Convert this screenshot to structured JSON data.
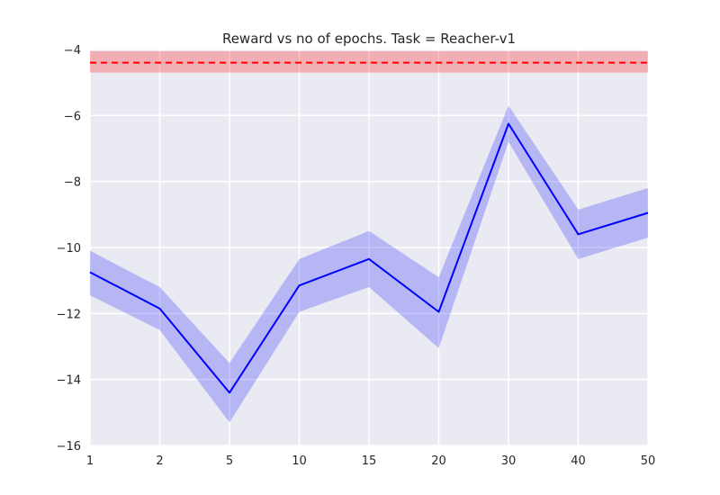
{
  "chart_data": {
    "type": "line",
    "title": "Reward vs no of epochs. Task = Reacher-v1",
    "xlabel": "",
    "ylabel": "",
    "categories": [
      "1",
      "2",
      "5",
      "10",
      "15",
      "20",
      "30",
      "40",
      "50"
    ],
    "ylim": [
      -16,
      -4
    ],
    "yticks": [
      -16,
      -14,
      -12,
      -10,
      -8,
      -6,
      -4
    ],
    "yticklabels": [
      "−16",
      "−14",
      "−12",
      "−10",
      "−8",
      "−6",
      "−4"
    ],
    "grid": true,
    "series": [
      {
        "values": [
          -10.75,
          -11.85,
          -14.4,
          -11.15,
          -10.35,
          -11.95,
          -6.25,
          -9.6,
          -8.95
        ],
        "upper": [
          -10.1,
          -11.2,
          -13.5,
          -10.35,
          -9.5,
          -10.9,
          -5.7,
          -8.85,
          -8.2
        ],
        "lower": [
          -11.45,
          -12.5,
          -15.3,
          -11.95,
          -11.2,
          -13.05,
          -6.8,
          -10.35,
          -9.7
        ],
        "color": "#0000ff",
        "band_color": "#0000ff"
      }
    ],
    "reference": {
      "value": -4.4,
      "upper": -4.05,
      "lower": -4.7,
      "color": "#ff0000",
      "style": "dashed"
    },
    "background_color": "#eaeaf2"
  }
}
